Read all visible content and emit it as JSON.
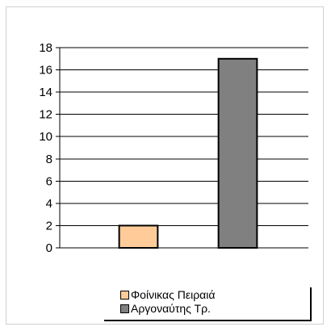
{
  "chart_data": {
    "type": "bar",
    "title": "",
    "xlabel": "",
    "ylabel": "",
    "ylim": [
      0,
      18
    ],
    "yticks": [
      0,
      2,
      4,
      6,
      8,
      10,
      12,
      14,
      16,
      18
    ],
    "grid": true,
    "legend_position": "bottom",
    "series": [
      {
        "name": "Φοίνικας Πειραιά",
        "values": [
          2
        ],
        "color": "#FFCC99"
      },
      {
        "name": "Αργοναύτης Τρ.",
        "values": [
          17
        ],
        "color": "#808080"
      }
    ]
  }
}
